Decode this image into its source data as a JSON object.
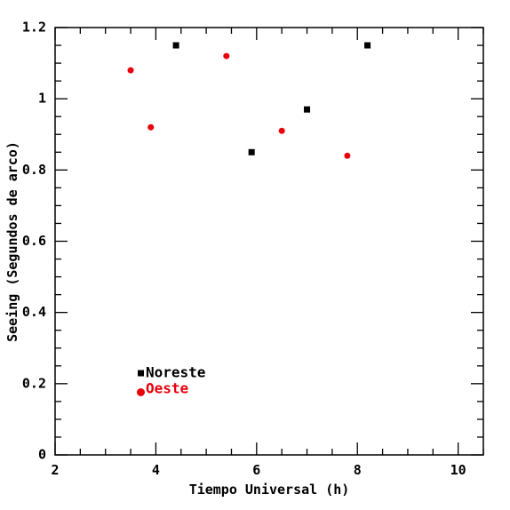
{
  "chart_data": {
    "type": "scatter",
    "title": "",
    "xlabel": "Tiempo Universal (h)",
    "ylabel": "Seeing (Segundos de arco)",
    "xlim": [
      2,
      10.5
    ],
    "ylim": [
      0,
      1.2
    ],
    "x_ticks": [
      2,
      4,
      6,
      8,
      10
    ],
    "y_ticks": [
      0,
      0.2,
      0.4,
      0.6,
      0.8,
      1,
      1.2
    ],
    "x_tick_labels": [
      "2",
      "4",
      "6",
      "8",
      "10"
    ],
    "y_tick_labels": [
      "0",
      "0.2",
      "0.4",
      "0.6",
      "0.8",
      "1",
      "1.2"
    ],
    "grid": false,
    "legend_position": "bottom-left",
    "series": [
      {
        "name": "Noreste",
        "marker": "square",
        "color": "#000000",
        "x": [
          4.4,
          5.9,
          7.0,
          8.2
        ],
        "y": [
          1.15,
          0.85,
          0.97,
          1.15
        ]
      },
      {
        "name": "Oeste",
        "marker": "circle",
        "color": "#e8000b",
        "x": [
          3.5,
          3.9,
          5.4,
          6.5,
          7.8
        ],
        "y": [
          1.08,
          0.92,
          1.12,
          0.91,
          0.84
        ]
      }
    ]
  }
}
